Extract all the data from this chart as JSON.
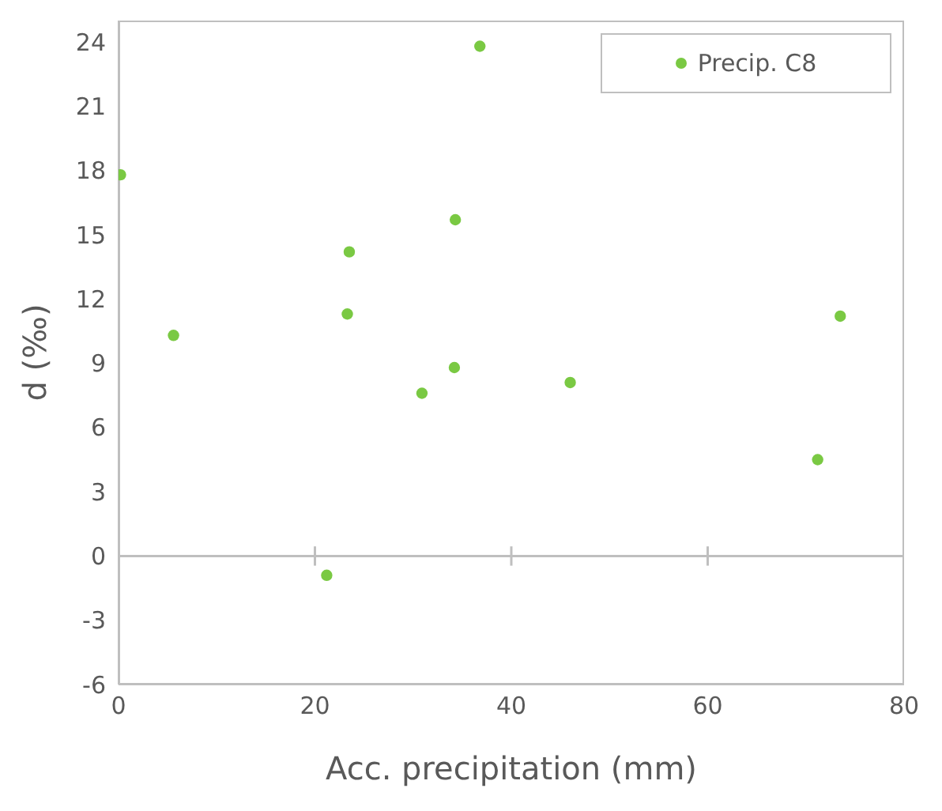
{
  "chart_data": {
    "type": "scatter",
    "xlabel": "Acc. precipitation (mm)",
    "ylabel": "d (‰)",
    "x": [
      0.2,
      5.6,
      23.5,
      23.3,
      36.8,
      34.3,
      73.5,
      30.9,
      34.2,
      46.0,
      71.2,
      21.2
    ],
    "series": [
      {
        "name": "Precip. C8",
        "color": "#7ac943",
        "values": [
          17.8,
          10.3,
          14.2,
          11.3,
          23.8,
          15.7,
          11.2,
          7.6,
          8.8,
          8.1,
          4.5,
          -0.9
        ]
      }
    ],
    "xlim": [
      0,
      80
    ],
    "xticks": [
      0,
      20,
      40,
      60,
      80
    ],
    "ylim": [
      -6,
      25
    ],
    "yticks": [
      -6,
      -3,
      0,
      3,
      6,
      9,
      12,
      15,
      18,
      21,
      24
    ],
    "ref_lines": [
      {
        "axis": "y",
        "value": 0,
        "color": "#bfbfbf"
      }
    ],
    "grid": false,
    "legend": "top right",
    "marker": "circle"
  }
}
